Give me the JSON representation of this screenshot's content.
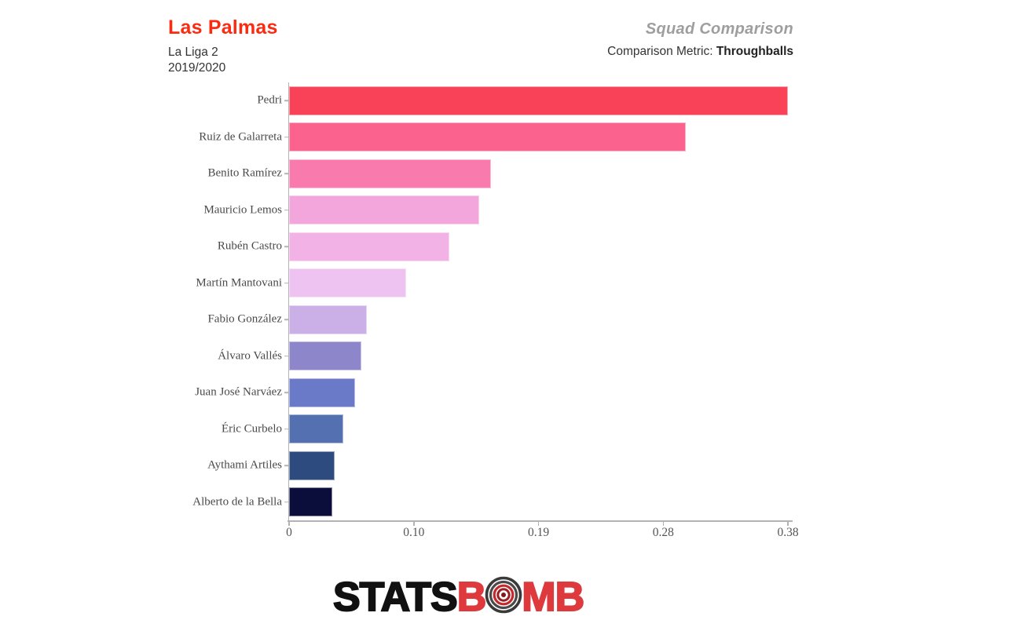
{
  "header": {
    "team": "Las Palmas",
    "competition": "La Liga 2",
    "season": "2019/2020",
    "chart_title": "Squad Comparison",
    "metric_label": "Comparison Metric: ",
    "metric_value": "Throughballs"
  },
  "colors": {
    "team_title": "#fb2b11",
    "logo_black": "#111111",
    "logo_red": "#de3a3e",
    "axis_gray": "#b3b3b3",
    "label_gray": "#4a4a4a"
  },
  "chart_data": {
    "type": "bar",
    "orientation": "horizontal",
    "title": "Squad Comparison",
    "metric": "Throughballs",
    "xlabel": "",
    "ylabel": "",
    "xlim": [
      0,
      0.38
    ],
    "grid": false,
    "legend": false,
    "x_ticks": [
      {
        "label": "0",
        "value": 0
      },
      {
        "label": "0.10",
        "value": 0.095
      },
      {
        "label": "0.19",
        "value": 0.19
      },
      {
        "label": "0.28",
        "value": 0.285
      },
      {
        "label": "0.38",
        "value": 0.38
      }
    ],
    "categories": [
      "Pedri",
      "Ruiz de Galarreta",
      "Benito Ramírez",
      "Mauricio Lemos",
      "Rubén Castro",
      "Martín Mantovani",
      "Fabio González",
      "Álvaro Vallés",
      "Juan José Narváez",
      "Éric Curbelo",
      "Aythami Artiles",
      "Alberto de la Bella"
    ],
    "values": [
      0.38,
      0.302,
      0.154,
      0.145,
      0.122,
      0.089,
      0.059,
      0.055,
      0.05,
      0.041,
      0.035,
      0.033
    ],
    "bar_colors": [
      "#f94157",
      "#fb628d",
      "#f97aac",
      "#f2a6db",
      "#f2b2e5",
      "#eec3f1",
      "#cbafe7",
      "#8e86ca",
      "#6a7ac8",
      "#5570b1",
      "#2e4b80",
      "#0b0d3b"
    ]
  },
  "logo": {
    "stats": "STATS",
    "b": "B",
    "mb": "MB",
    "target_icon": "bomb-target-icon"
  }
}
